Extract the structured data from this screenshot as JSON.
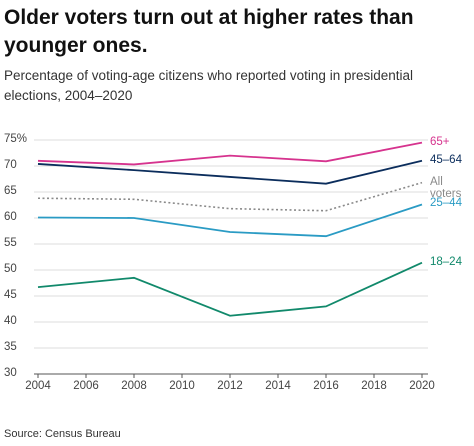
{
  "chart_data": {
    "type": "line",
    "title": "Older voters turn out at higher rates than younger ones.",
    "subtitle": "Percentage of voting-age citizens who reported voting in presidential elections, 2004–2020",
    "source": "Source: Census Bureau",
    "x": [
      2004,
      2008,
      2012,
      2016,
      2020
    ],
    "xlim": [
      2004,
      2020
    ],
    "xticks": [
      2004,
      2006,
      2008,
      2010,
      2012,
      2014,
      2016,
      2018,
      2020
    ],
    "ylim": [
      30,
      75
    ],
    "yticks": [
      30,
      35,
      40,
      45,
      50,
      55,
      60,
      65,
      70,
      {
        "value": 75,
        "label": "75%"
      }
    ],
    "grid": true,
    "series": [
      {
        "name": "65+",
        "color": "#d6338e",
        "style": "solid",
        "values": [
          71.0,
          70.3,
          72.0,
          70.9,
          74.5
        ]
      },
      {
        "name": "45–64",
        "color": "#0b2d5c",
        "style": "solid",
        "values": [
          70.4,
          69.2,
          67.9,
          66.6,
          71.0
        ]
      },
      {
        "name": "All voters",
        "color": "#8a8a8a",
        "style": "dotted",
        "values": [
          63.8,
          63.6,
          61.8,
          61.4,
          66.8
        ]
      },
      {
        "name": "25–44",
        "color": "#2a9bc4",
        "style": "solid",
        "values": [
          60.1,
          60.0,
          57.3,
          56.5,
          62.6
        ]
      },
      {
        "name": "18–24",
        "color": "#11896b",
        "style": "solid",
        "values": [
          46.7,
          48.5,
          41.2,
          43.0,
          51.4
        ]
      }
    ]
  }
}
